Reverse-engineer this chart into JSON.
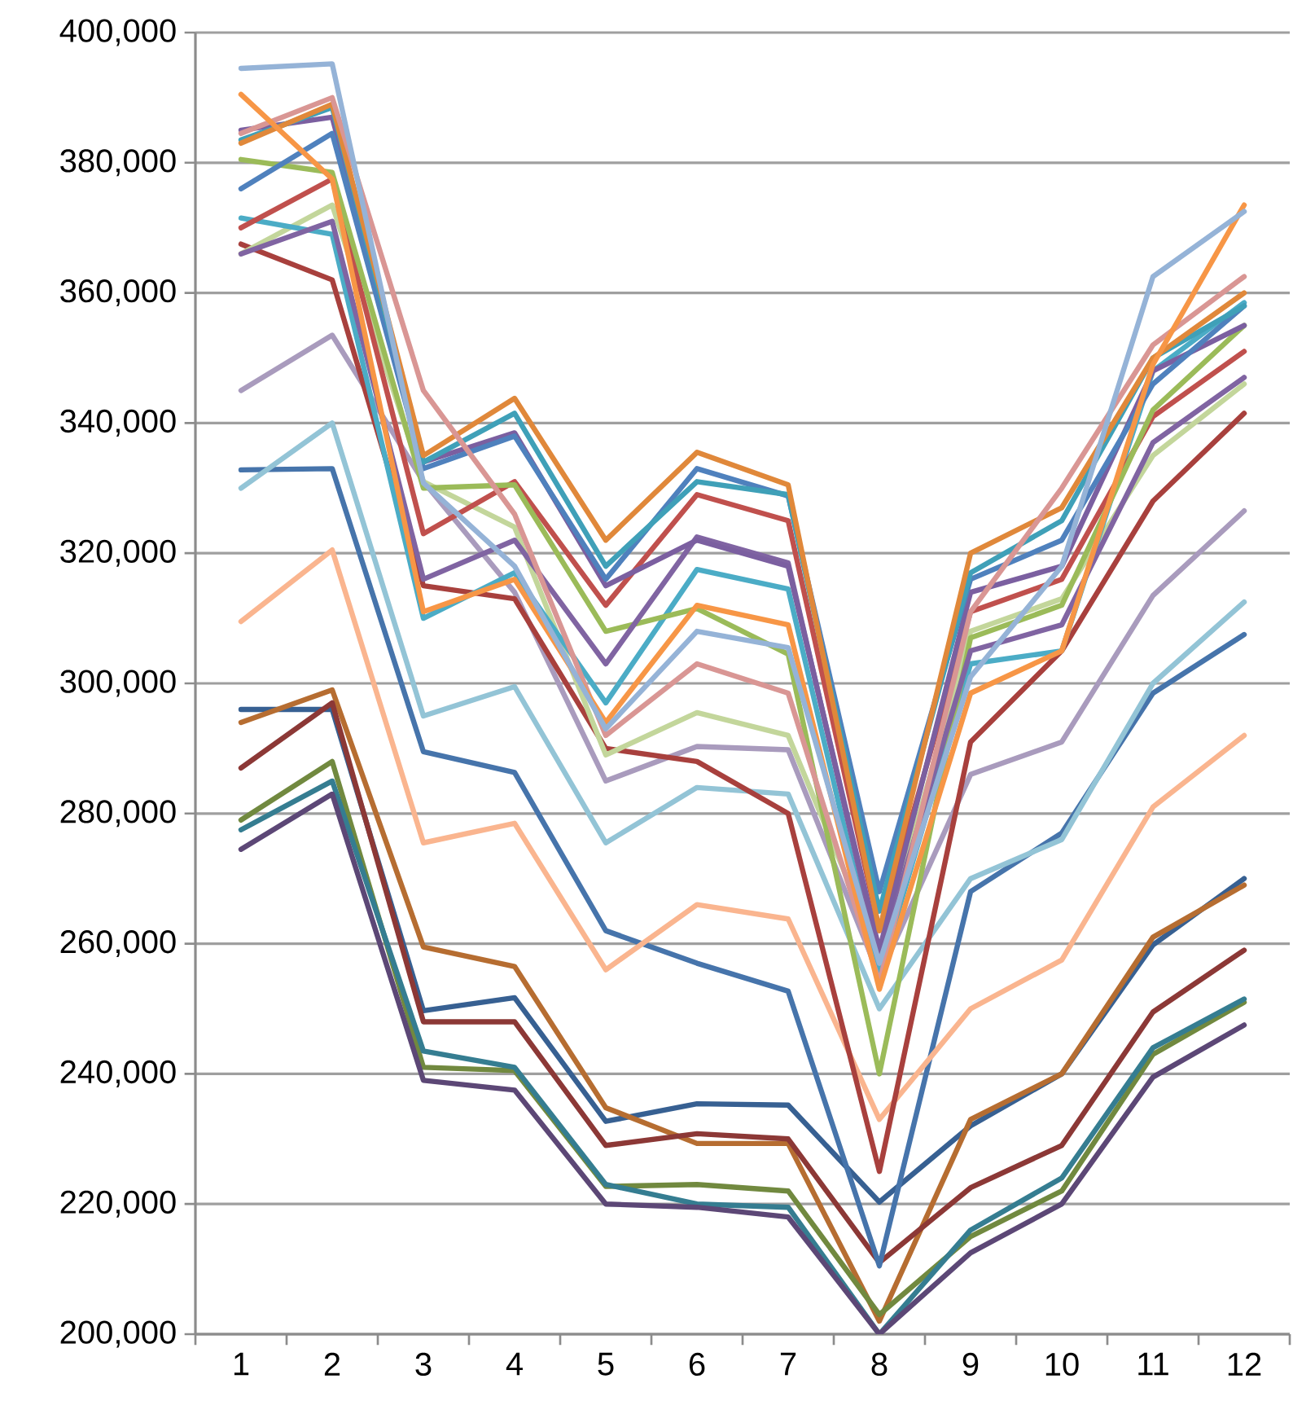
{
  "chart_data": {
    "type": "line",
    "categories": [
      "1",
      "2",
      "3",
      "4",
      "5",
      "6",
      "7",
      "8",
      "9",
      "10",
      "11",
      "12"
    ],
    "ylim": [
      200000,
      400000
    ],
    "yticks": [
      {
        "value": 200000,
        "label": "200,000"
      },
      {
        "value": 220000,
        "label": "220,000"
      },
      {
        "value": 240000,
        "label": "240,000"
      },
      {
        "value": 260000,
        "label": "260,000"
      },
      {
        "value": 280000,
        "label": "280,000"
      },
      {
        "value": 300000,
        "label": "300,000"
      },
      {
        "value": 320000,
        "label": "320,000"
      },
      {
        "value": 340000,
        "label": "340,000"
      },
      {
        "value": 360000,
        "label": "360,000"
      },
      {
        "value": 380000,
        "label": "380,000"
      },
      {
        "value": 400000,
        "label": "400,000"
      }
    ],
    "grid": "y",
    "marker": "none",
    "line_style": "solid",
    "series": [
      {
        "color": "#376092",
        "values": [
          296000,
          296000,
          249700,
          251700,
          232700,
          235400,
          235200,
          220300,
          232000,
          240000,
          259800,
          270000
        ]
      },
      {
        "color": "#b66d31",
        "values": [
          294000,
          299000,
          259500,
          256500,
          234800,
          229300,
          229300,
          202000,
          233000,
          240000,
          261000,
          269000
        ]
      },
      {
        "color": "#8c3836",
        "values": [
          287000,
          297000,
          248000,
          248000,
          229000,
          230800,
          230000,
          211000,
          222500,
          229000,
          249500,
          259000
        ]
      },
      {
        "color": "#71893f",
        "values": [
          279000,
          288000,
          241000,
          240500,
          222700,
          223000,
          222000,
          203000,
          215000,
          222000,
          243000,
          251000
        ]
      },
      {
        "color": "#357d91",
        "values": [
          277500,
          285000,
          243500,
          241000,
          223000,
          220000,
          219500,
          200000,
          216000,
          224000,
          244000,
          251500
        ]
      },
      {
        "color": "#5c4776",
        "values": [
          274500,
          283000,
          239000,
          237500,
          220000,
          219500,
          218000,
          200000,
          212500,
          220000,
          239500,
          247500
        ]
      },
      {
        "color": "#4674ab",
        "values": [
          332800,
          333000,
          289500,
          286300,
          262000,
          257000,
          252700,
          210500,
          268000,
          277000,
          298500,
          307500
        ]
      },
      {
        "color": "#93c4d6",
        "values": [
          330000,
          340000,
          295000,
          299500,
          275500,
          284000,
          283000,
          250000,
          270000,
          276000,
          300000,
          312500
        ]
      },
      {
        "color": "#fab58f",
        "values": [
          309500,
          320500,
          275500,
          278500,
          256000,
          266000,
          263800,
          233000,
          250000,
          257500,
          281000,
          292000
        ]
      },
      {
        "color": "#a99bbd",
        "values": [
          345000,
          353500,
          331000,
          314000,
          285000,
          290300,
          289800,
          255000,
          286000,
          291000,
          313500,
          326500
        ]
      },
      {
        "color": "#a8403d",
        "values": [
          367500,
          362000,
          315000,
          313000,
          290000,
          288000,
          280000,
          225000,
          291000,
          305000,
          328000,
          341500
        ]
      },
      {
        "color": "#c3d69b",
        "values": [
          366000,
          373500,
          331000,
          324000,
          289000,
          295500,
          292000,
          258000,
          308000,
          313000,
          335000,
          346000
        ]
      },
      {
        "color": "#4bacc6",
        "values": [
          371500,
          369000,
          310000,
          317000,
          297000,
          317500,
          314500,
          255000,
          303000,
          305000,
          348000,
          358500
        ]
      },
      {
        "color": "#c0504d",
        "values": [
          370000,
          377500,
          323000,
          331000,
          312000,
          329000,
          325000,
          262000,
          311000,
          316000,
          341000,
          351000
        ]
      },
      {
        "color": "#9bbb59",
        "values": [
          380500,
          378500,
          330000,
          330500,
          308000,
          311500,
          304500,
          240000,
          307000,
          312000,
          342000,
          355000
        ]
      },
      {
        "color": "#8064a2",
        "values": [
          366000,
          371000,
          316000,
          322000,
          303000,
          322500,
          318500,
          258000,
          305000,
          309000,
          337000,
          347000
        ]
      },
      {
        "color": "#7b5fa0",
        "values": [
          385000,
          387000,
          334000,
          338500,
          315000,
          322000,
          318000,
          259000,
          314000,
          318000,
          348000,
          355000
        ]
      },
      {
        "color": "#4f81bd",
        "values": [
          376000,
          384500,
          333000,
          338000,
          316000,
          333000,
          328800,
          268000,
          316000,
          322000,
          346000,
          358000
        ]
      },
      {
        "color": "#3fa0b8",
        "values": [
          383500,
          388500,
          334000,
          341500,
          318000,
          331000,
          329000,
          265000,
          317000,
          325000,
          350000,
          358000
        ]
      },
      {
        "color": "#e0883a",
        "values": [
          383000,
          389000,
          335000,
          343800,
          322000,
          335500,
          330500,
          262000,
          320000,
          327000,
          350000,
          360000
        ]
      },
      {
        "color": "#d99694",
        "values": [
          384500,
          390000,
          345000,
          326000,
          292000,
          303000,
          298500,
          254000,
          311000,
          330000,
          352000,
          362500
        ]
      },
      {
        "color": "#f79646",
        "values": [
          390500,
          377500,
          311000,
          316000,
          294000,
          312000,
          309000,
          253000,
          298500,
          305000,
          349000,
          373500
        ]
      },
      {
        "color": "#95b3d7",
        "values": [
          394500,
          395200,
          330800,
          318000,
          293000,
          308000,
          305500,
          257000,
          301000,
          318000,
          362500,
          372500
        ]
      }
    ]
  }
}
